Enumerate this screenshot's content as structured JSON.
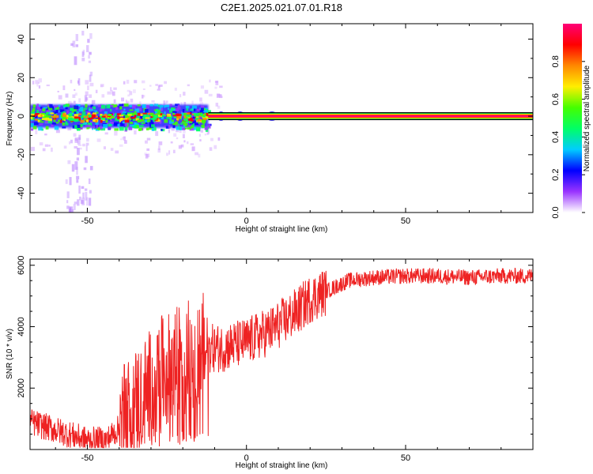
{
  "title": "C2E1.2025.021.07.01.R18",
  "colors": {
    "snr_line": "#ee2222",
    "frame": "#000000",
    "background": "#ffffff",
    "colorbar_stops": [
      "#ffffff",
      "#9933ff",
      "#0000ff",
      "#00ccff",
      "#00ff66",
      "#44ff00",
      "#ffee00",
      "#ff8800",
      "#ff0000",
      "#ff0077"
    ]
  },
  "chart_data": [
    {
      "type": "heatmap",
      "name": "spectrogram",
      "xlabel": "Height of straight line (km)",
      "ylabel": "Frequency (Hz)",
      "xlim": [
        -68,
        90
      ],
      "ylim": [
        -50,
        48
      ],
      "xticks": [
        -50,
        0,
        50
      ],
      "xtick_labels": [
        "-50",
        "0",
        "50"
      ],
      "yticks": [
        -40,
        -20,
        0,
        20,
        40
      ],
      "ytick_labels": [
        "-40",
        "-20",
        "0",
        "20",
        "40"
      ],
      "colorbar": {
        "label": "Normalized spectral amplitude",
        "range": [
          0,
          1
        ],
        "ticks": [
          0.0,
          0.2,
          0.4,
          0.6,
          0.8
        ],
        "tick_labels": [
          "0.0",
          "0.2",
          "0.4",
          "0.6",
          "0.8"
        ]
      },
      "features": {
        "main_band_center_hz": 0,
        "noisy_band_half_width_hz": 6,
        "noisy_region_x": [
          -68,
          -12
        ],
        "clean_line_x": [
          -12,
          90
        ],
        "vertical_noise_column_x": -53
      }
    },
    {
      "type": "line",
      "name": "snr",
      "xlabel": "Height of straight line (km)",
      "ylabel": "SNR (10 * v/v)",
      "xlim": [
        -68,
        90
      ],
      "ylim": [
        0,
        6200
      ],
      "xticks": [
        -50,
        0,
        50
      ],
      "xtick_labels": [
        "-50",
        "0",
        "50"
      ],
      "yticks": [
        2000,
        4000,
        6000
      ],
      "ytick_labels": [
        "2000",
        "4000",
        "6000"
      ],
      "series": [
        {
          "x": [
            -68,
            -62,
            -56,
            -50,
            -44,
            -40,
            -36,
            -32,
            -28,
            -24,
            -20,
            -16,
            -12,
            -8,
            -4,
            0,
            4,
            8,
            12,
            16,
            20,
            24,
            28,
            32,
            36,
            40,
            50,
            60,
            70,
            80,
            90
          ],
          "y": [
            900,
            700,
            500,
            300,
            300,
            700,
            1400,
            1800,
            2400,
            2600,
            3000,
            3200,
            3300,
            3300,
            3400,
            3500,
            3700,
            3900,
            4200,
            4500,
            4900,
            5100,
            5300,
            5500,
            5550,
            5600,
            5650,
            5650,
            5600,
            5650,
            5650
          ]
        }
      ]
    }
  ]
}
